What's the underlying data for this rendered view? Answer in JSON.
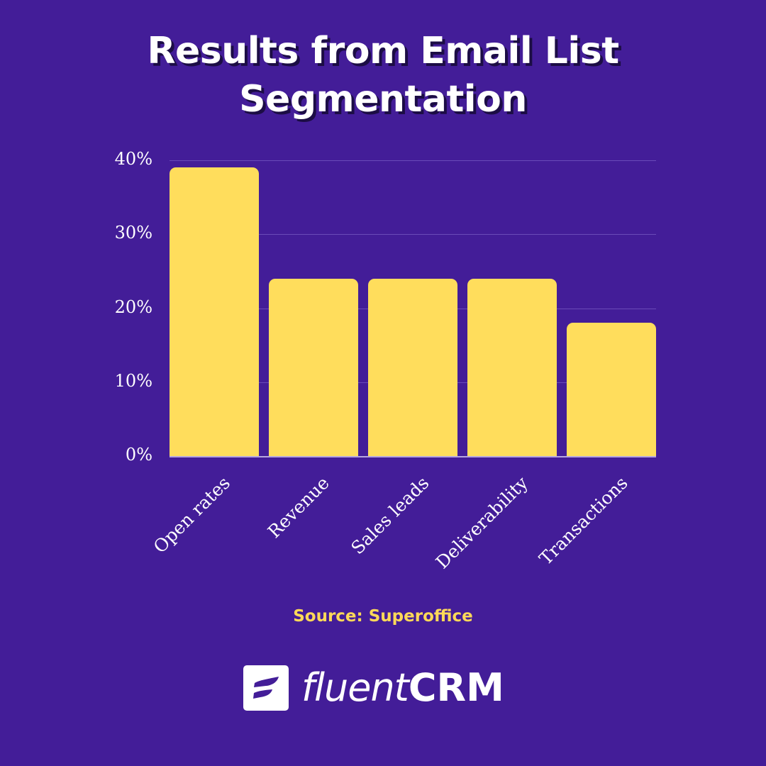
{
  "header": {
    "title_line1": "Results from Email List",
    "title_line2": "Segmentation"
  },
  "chart_data": {
    "type": "bar",
    "title": "Results from Email List Segmentation",
    "xlabel": "",
    "ylabel": "",
    "categories": [
      "Open rates",
      "Revenue",
      "Sales leads",
      "Deliverability",
      "Transactions"
    ],
    "values": [
      39,
      24,
      24,
      24,
      18
    ],
    "unit": "%",
    "ylim": [
      0,
      40
    ],
    "yticks": [
      "0%",
      "10%",
      "20%",
      "30%",
      "40%"
    ],
    "grid": true,
    "legend": null,
    "bar_color": "#ffdd5c",
    "background_color": "#431d98"
  },
  "footer": {
    "source": "Source: Superoffice",
    "brand_light": "fluent",
    "brand_bold": "CRM",
    "brand_icon": "fluentcrm-logo-icon"
  }
}
